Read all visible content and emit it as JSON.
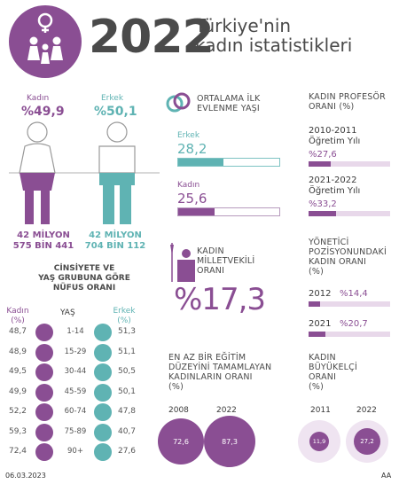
{
  "header": {
    "year": "2022",
    "title_line1": "Türkiye'nin",
    "title_line2": "kadın istatistikleri"
  },
  "population": {
    "female_label": "Kadın",
    "female_pct": "%49,9",
    "female_count_1": "42 MİLYON",
    "female_count_2": "575 BİN 441",
    "male_label": "Erkek",
    "male_pct": "%50,1",
    "male_count_1": "42 MİLYON",
    "male_count_2": "704 BİN 112"
  },
  "marriage": {
    "title_1": "ORTALAMA İLK",
    "title_2": "EVLENME YAŞI",
    "male_label": "Erkek",
    "male_value": "28,2",
    "male_fill": 0.45,
    "female_label": "Kadın",
    "female_value": "25,6",
    "female_fill": 0.36
  },
  "professor": {
    "title_1": "KADIN PROFESÖR",
    "title_2": "ORANI (%)",
    "p1_label_1": "2010-2011",
    "p1_label_2": "Öğretim Yılı",
    "p1_value": "%27,6",
    "p1_fill": 0.276,
    "p2_label_1": "2021-2022",
    "p2_label_2": "Öğretim Yılı",
    "p2_value": "%33,2",
    "p2_fill": 0.332
  },
  "mp": {
    "title_1": "KADIN",
    "title_2": "MİLLETVEKİLİ",
    "title_3": "ORANI",
    "value": "%17,3"
  },
  "manager": {
    "title_1": "YÖNETİCİ",
    "title_2": "POZİSYONUNDAKİ",
    "title_3": "KADIN ORANI",
    "title_4": "(%)",
    "y1": "2012",
    "v1": "%14,4",
    "f1": 0.144,
    "y2": "2021",
    "v2": "%20,7",
    "f2": 0.207
  },
  "age": {
    "title_1": "CİNSİYETE VE",
    "title_2": "YAŞ GRUBUNA GÖRE",
    "title_3": "NÜFUS ORANI",
    "col_female_1": "Kadın",
    "col_female_2": "(%)",
    "col_age": "YAŞ",
    "col_male_1": "Erkek",
    "col_male_2": "(%)",
    "rows": [
      {
        "female": "48,7",
        "age": "1-14",
        "male": "51,3"
      },
      {
        "female": "48,9",
        "age": "15-29",
        "male": "51,1"
      },
      {
        "female": "49,5",
        "age": "30-44",
        "male": "50,5"
      },
      {
        "female": "49,9",
        "age": "45-59",
        "male": "50,1"
      },
      {
        "female": "52,2",
        "age": "60-74",
        "male": "47,8"
      },
      {
        "female": "59,3",
        "age": "75-89",
        "male": "40,7"
      },
      {
        "female": "72,4",
        "age": "90+",
        "male": "27,6"
      }
    ]
  },
  "education": {
    "title_1": "EN AZ BİR EĞİTİM",
    "title_2": "DÜZEYİNİ TAMAMLAYAN",
    "title_3": "KADINLARIN ORANI",
    "title_4": "(%)",
    "y1": "2008",
    "v1": "72,6",
    "y2": "2022",
    "v2": "87,3"
  },
  "ambassador": {
    "title_1": "KADIN",
    "title_2": "BÜYÜKELÇİ",
    "title_3": "ORANI",
    "title_4": "(%)",
    "y1": "2011",
    "v1": "11,9",
    "y2": "2022",
    "v2": "27,2"
  },
  "footer": {
    "date": "06.03.2023",
    "source": "AA"
  },
  "colors": {
    "purple": "#8a4e93",
    "teal": "#5fb3b3",
    "light_purple": "#e8d8ea"
  }
}
